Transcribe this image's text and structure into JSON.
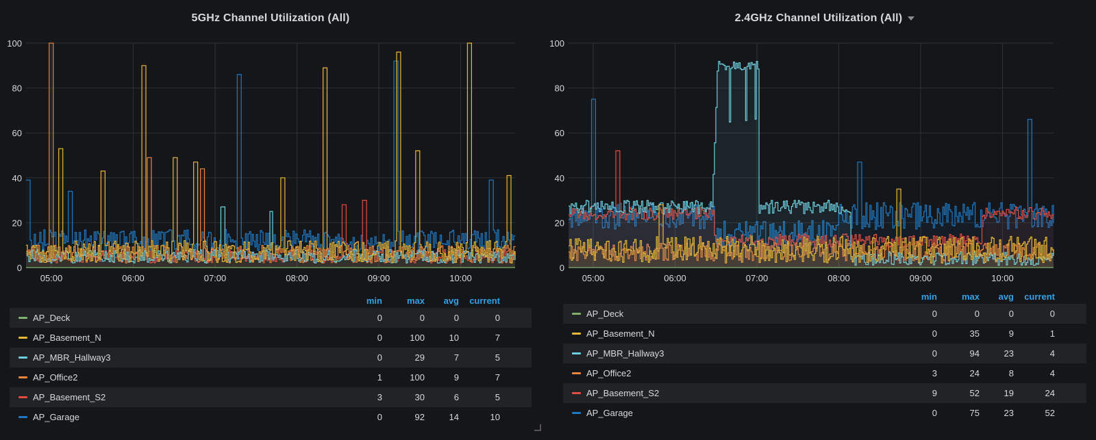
{
  "panels": [
    {
      "title": "5GHz Channel Utilization (All)",
      "has_menu": false,
      "legend_headers": [
        "min",
        "max",
        "avg",
        "current"
      ],
      "rows": [
        {
          "name": "AP_Deck",
          "color": "#7eb26d",
          "min": "0",
          "max": "0",
          "avg": "0",
          "current": "0"
        },
        {
          "name": "AP_Basement_N",
          "color": "#eab839",
          "min": "0",
          "max": "100",
          "avg": "10",
          "current": "7"
        },
        {
          "name": "AP_MBR_Hallway3",
          "color": "#6ed0e0",
          "min": "0",
          "max": "29",
          "avg": "7",
          "current": "5"
        },
        {
          "name": "AP_Office2",
          "color": "#ef843c",
          "min": "1",
          "max": "100",
          "avg": "9",
          "current": "7"
        },
        {
          "name": "AP_Basement_S2",
          "color": "#e24d42",
          "min": "3",
          "max": "30",
          "avg": "6",
          "current": "5"
        },
        {
          "name": "AP_Garage",
          "color": "#1f78c1",
          "min": "0",
          "max": "92",
          "avg": "14",
          "current": "10"
        }
      ]
    },
    {
      "title": "2.4GHz Channel Utilization (All)",
      "has_menu": true,
      "legend_headers": [
        "min",
        "max",
        "avg",
        "current"
      ],
      "rows": [
        {
          "name": "AP_Deck",
          "color": "#7eb26d",
          "min": "0",
          "max": "0",
          "avg": "0",
          "current": "0"
        },
        {
          "name": "AP_Basement_N",
          "color": "#eab839",
          "min": "0",
          "max": "35",
          "avg": "9",
          "current": "1"
        },
        {
          "name": "AP_MBR_Hallway3",
          "color": "#6ed0e0",
          "min": "0",
          "max": "94",
          "avg": "23",
          "current": "4"
        },
        {
          "name": "AP_Office2",
          "color": "#ef843c",
          "min": "3",
          "max": "24",
          "avg": "8",
          "current": "4"
        },
        {
          "name": "AP_Basement_S2",
          "color": "#e24d42",
          "min": "9",
          "max": "52",
          "avg": "19",
          "current": "24"
        },
        {
          "name": "AP_Garage",
          "color": "#1f78c1",
          "min": "0",
          "max": "75",
          "avg": "23",
          "current": "52"
        }
      ]
    }
  ],
  "chart_data": [
    {
      "type": "line",
      "title": "5GHz Channel Utilization (All)",
      "ylim": [
        0,
        100
      ],
      "y_ticks": [
        "0",
        "20",
        "40",
        "60",
        "80",
        "100"
      ],
      "x_ticks": [
        "05:00",
        "06:00",
        "07:00",
        "08:00",
        "09:00",
        "10:00"
      ],
      "grid": true,
      "series": [
        {
          "name": "AP_Deck",
          "color": "#7eb26d",
          "base": 0,
          "noise": 0,
          "spikes": []
        },
        {
          "name": "AP_Basement_N",
          "color": "#eab839",
          "base": 7,
          "noise": 5,
          "spikes": [
            [
              0.07,
              53
            ],
            [
              0.155,
              43
            ],
            [
              0.24,
              90
            ],
            [
              0.305,
              49
            ],
            [
              0.345,
              47
            ],
            [
              0.525,
              40
            ],
            [
              0.61,
              89
            ],
            [
              0.76,
              96
            ],
            [
              0.8,
              52
            ],
            [
              0.905,
              100
            ],
            [
              0.985,
              41
            ]
          ]
        },
        {
          "name": "AP_MBR_Hallway3",
          "color": "#6ed0e0",
          "base": 5,
          "noise": 3,
          "spikes": [
            [
              0.4,
              27
            ],
            [
              0.5,
              25
            ]
          ]
        },
        {
          "name": "AP_Office2",
          "color": "#ef843c",
          "base": 6,
          "noise": 4,
          "spikes": [
            [
              0.05,
              100
            ],
            [
              0.25,
              49
            ],
            [
              0.36,
              44
            ]
          ]
        },
        {
          "name": "AP_Basement_S2",
          "color": "#e24d42",
          "base": 5,
          "noise": 3,
          "spikes": [
            [
              0.65,
              28
            ],
            [
              0.69,
              30
            ]
          ]
        },
        {
          "name": "AP_Garage",
          "color": "#1f78c1",
          "base": 12,
          "noise": 5,
          "spikes": [
            [
              0.003,
              39
            ],
            [
              0.09,
              34
            ],
            [
              0.435,
              86
            ],
            [
              0.755,
              92
            ],
            [
              0.95,
              39
            ]
          ]
        }
      ]
    },
    {
      "type": "line",
      "title": "2.4GHz Channel Utilization (All)",
      "ylim": [
        0,
        100
      ],
      "y_ticks": [
        "0",
        "20",
        "40",
        "60",
        "80",
        "100"
      ],
      "x_ticks": [
        "05:00",
        "06:00",
        "07:00",
        "08:00",
        "09:00",
        "10:00"
      ],
      "grid": true,
      "series": [
        {
          "name": "AP_Deck",
          "color": "#7eb26d",
          "base": 0,
          "noise": 0,
          "spikes": []
        },
        {
          "name": "AP_Basement_N",
          "color": "#eab839",
          "base": 8,
          "noise": 6,
          "spikes": [
            [
              0.19,
              28
            ],
            [
              0.68,
              35
            ]
          ]
        },
        {
          "name": "AP_MBR_Hallway3",
          "color": "#6ed0e0",
          "base": 27,
          "noise": 3,
          "plateau": [
            0.295,
            0.39,
            92
          ],
          "late_base": 4,
          "late_from": 0.58,
          "spikes": []
        },
        {
          "name": "AP_Office2",
          "color": "#ef843c",
          "base": 7,
          "noise": 4,
          "spikes": []
        },
        {
          "name": "AP_Basement_S2",
          "color": "#e24d42",
          "base": 24,
          "noise": 3,
          "spikes": [
            [
              0.1,
              52
            ]
          ],
          "mid_base": 12,
          "mid_range": [
            0.3,
            0.85
          ]
        },
        {
          "name": "AP_Garage",
          "color": "#1f78c1",
          "base": 23,
          "noise": 6,
          "spikes": [
            [
              0.05,
              75
            ],
            [
              0.6,
              47
            ],
            [
              0.95,
              66
            ]
          ],
          "mid_base": 15,
          "mid_range": [
            0.3,
            0.55
          ]
        }
      ]
    }
  ]
}
